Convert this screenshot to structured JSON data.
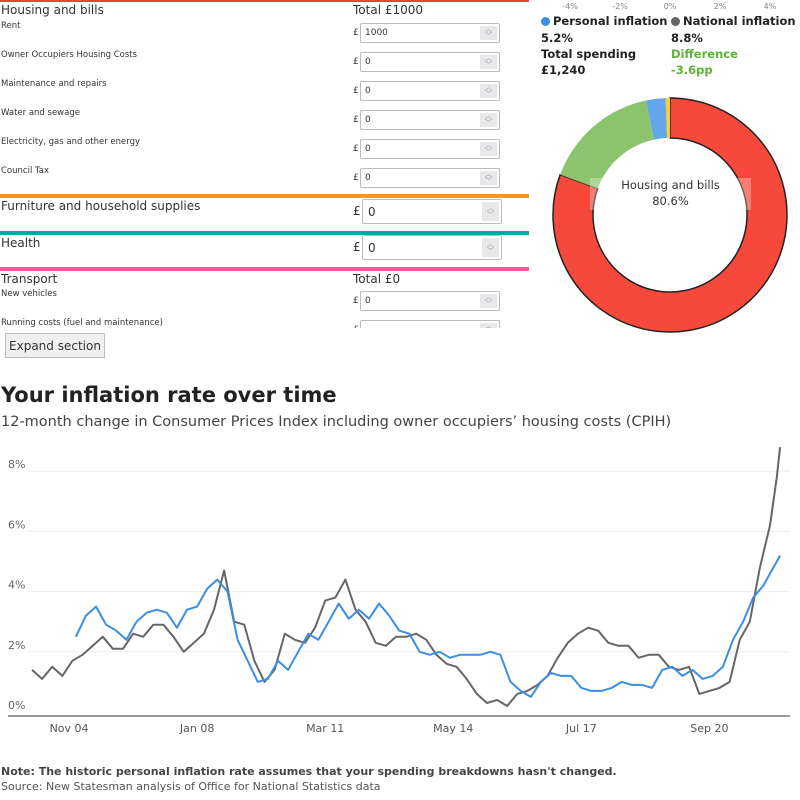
{
  "sections": {
    "housing": {
      "title": "Housing and bills",
      "total": "Total £1000",
      "color": "#f44336",
      "rows": [
        {
          "label": "Rent",
          "value": "1000"
        },
        {
          "label": "Owner Occupiers Housing Costs",
          "value": "0"
        },
        {
          "label": "Maintenance and repairs",
          "value": "0"
        },
        {
          "label": "Water and sewage",
          "value": "0"
        },
        {
          "label": "Electricity, gas and other energy",
          "value": "0"
        },
        {
          "label": "Council Tax",
          "value": "0"
        }
      ]
    },
    "furniture": {
      "title": "Furniture and household supplies",
      "value": "0",
      "color": "#f7941d"
    },
    "health": {
      "title": "Health",
      "value": "0",
      "color": "#0aa4a4"
    },
    "transport": {
      "title": "Transport",
      "total": "Total £0",
      "color": "#f4569a",
      "rows": [
        {
          "label": "New vehicles",
          "value": "0"
        },
        {
          "label": "Running costs (fuel and maintenance)",
          "value": ""
        }
      ]
    },
    "currency": "£",
    "expand_label": "Expand section"
  },
  "summary": {
    "top_ticks": [
      "-4%",
      "-2%",
      "0%",
      "2%",
      "4%"
    ],
    "personal_label": "Personal inflation",
    "personal_value": "5.2%",
    "national_label": "National inflation",
    "national_value": "8.8%",
    "total_label": "Total spending",
    "total_value": "£1,240",
    "difference_label": "Difference",
    "difference_value": "-3.6pp",
    "colors": {
      "personal": "#3a8ee6",
      "national": "#666666",
      "difference": "#5db336"
    }
  },
  "donut": {
    "center_label": "Housing and bills",
    "center_value": "80.6%",
    "segments": [
      {
        "name": "Housing and bills",
        "percent": 80.6,
        "color": "#f6483b"
      },
      {
        "percent": 16.1,
        "color": "#8cc46e"
      },
      {
        "percent": 2.7,
        "color": "#63a6ea"
      },
      {
        "percent": 0.6,
        "color": "#f5d131"
      }
    ]
  },
  "chart": {
    "title": "Your inflation rate over time",
    "subtitle": "12-month change in Consumer Prices Index including owner occupiers’ housing costs (CPIH)",
    "note": "Note: The historic personal inflation rate assumes that your spending breakdowns hasn't changed.",
    "source": "Source: New Statesman analysis of Office for National Statistics data"
  },
  "chart_data": {
    "type": "line",
    "ylim": [
      0,
      8
    ],
    "yticks": [
      "0%",
      "2%",
      "4%",
      "6%",
      "8%"
    ],
    "xticks": [
      {
        "label": "Nov 04",
        "date": "2004-11"
      },
      {
        "label": "Jan 08",
        "date": "2008-01"
      },
      {
        "label": "Mar 11",
        "date": "2011-03"
      },
      {
        "label": "May 14",
        "date": "2014-05"
      },
      {
        "label": "Jul 17",
        "date": "2017-07"
      },
      {
        "label": "Sep 20",
        "date": "2020-09"
      }
    ],
    "xlim": [
      "2003-11",
      "2022-08"
    ],
    "grid": true,
    "series": [
      {
        "name": "National inflation",
        "color": "#666666",
        "points": [
          [
            "2003-12",
            1.4
          ],
          [
            "2004-03",
            1.1
          ],
          [
            "2004-06",
            1.5
          ],
          [
            "2004-09",
            1.2
          ],
          [
            "2004-12",
            1.7
          ],
          [
            "2005-03",
            1.9
          ],
          [
            "2005-06",
            2.2
          ],
          [
            "2005-09",
            2.5
          ],
          [
            "2005-12",
            2.1
          ],
          [
            "2006-03",
            2.1
          ],
          [
            "2006-06",
            2.6
          ],
          [
            "2006-09",
            2.5
          ],
          [
            "2006-12",
            2.9
          ],
          [
            "2007-03",
            2.9
          ],
          [
            "2007-06",
            2.5
          ],
          [
            "2007-09",
            2.0
          ],
          [
            "2007-12",
            2.3
          ],
          [
            "2008-03",
            2.6
          ],
          [
            "2008-06",
            3.4
          ],
          [
            "2008-09",
            4.7
          ],
          [
            "2008-12",
            3.0
          ],
          [
            "2009-03",
            2.9
          ],
          [
            "2009-06",
            1.7
          ],
          [
            "2009-09",
            1.0
          ],
          [
            "2009-12",
            1.4
          ],
          [
            "2010-03",
            2.6
          ],
          [
            "2010-06",
            2.4
          ],
          [
            "2010-09",
            2.3
          ],
          [
            "2010-12",
            2.8
          ],
          [
            "2011-03",
            3.7
          ],
          [
            "2011-06",
            3.8
          ],
          [
            "2011-09",
            4.4
          ],
          [
            "2011-12",
            3.4
          ],
          [
            "2012-03",
            3.0
          ],
          [
            "2012-06",
            2.3
          ],
          [
            "2012-09",
            2.2
          ],
          [
            "2012-12",
            2.5
          ],
          [
            "2013-03",
            2.5
          ],
          [
            "2013-06",
            2.6
          ],
          [
            "2013-09",
            2.4
          ],
          [
            "2013-12",
            1.9
          ],
          [
            "2014-03",
            1.6
          ],
          [
            "2014-06",
            1.5
          ],
          [
            "2014-09",
            1.1
          ],
          [
            "2014-12",
            0.6
          ],
          [
            "2015-03",
            0.3
          ],
          [
            "2015-06",
            0.4
          ],
          [
            "2015-09",
            0.2
          ],
          [
            "2015-12",
            0.6
          ],
          [
            "2016-03",
            0.7
          ],
          [
            "2016-06",
            0.9
          ],
          [
            "2016-09",
            1.2
          ],
          [
            "2016-12",
            1.8
          ],
          [
            "2017-03",
            2.3
          ],
          [
            "2017-06",
            2.6
          ],
          [
            "2017-09",
            2.8
          ],
          [
            "2017-12",
            2.7
          ],
          [
            "2018-03",
            2.3
          ],
          [
            "2018-06",
            2.2
          ],
          [
            "2018-09",
            2.2
          ],
          [
            "2018-12",
            1.8
          ],
          [
            "2019-03",
            1.9
          ],
          [
            "2019-06",
            1.9
          ],
          [
            "2019-09",
            1.5
          ],
          [
            "2019-12",
            1.4
          ],
          [
            "2020-03",
            1.5
          ],
          [
            "2020-06",
            0.6
          ],
          [
            "2020-09",
            0.7
          ],
          [
            "2020-12",
            0.8
          ],
          [
            "2021-03",
            1.0
          ],
          [
            "2021-06",
            2.4
          ],
          [
            "2021-09",
            3.0
          ],
          [
            "2021-12",
            4.8
          ],
          [
            "2022-03",
            6.2
          ],
          [
            "2022-05",
            7.8
          ],
          [
            "2022-06",
            8.8
          ]
        ]
      },
      {
        "name": "Personal inflation",
        "color": "#3a8ee6",
        "points": [
          [
            "2005-01",
            2.5
          ],
          [
            "2005-04",
            3.2
          ],
          [
            "2005-07",
            3.5
          ],
          [
            "2005-10",
            2.9
          ],
          [
            "2006-01",
            2.7
          ],
          [
            "2006-04",
            2.4
          ],
          [
            "2006-07",
            3.0
          ],
          [
            "2006-10",
            3.3
          ],
          [
            "2007-01",
            3.4
          ],
          [
            "2007-04",
            3.3
          ],
          [
            "2007-07",
            2.8
          ],
          [
            "2007-10",
            3.4
          ],
          [
            "2008-01",
            3.5
          ],
          [
            "2008-04",
            4.1
          ],
          [
            "2008-07",
            4.4
          ],
          [
            "2008-10",
            4.0
          ],
          [
            "2009-01",
            2.4
          ],
          [
            "2009-04",
            1.7
          ],
          [
            "2009-07",
            1.0
          ],
          [
            "2009-10",
            1.1
          ],
          [
            "2010-01",
            1.7
          ],
          [
            "2010-04",
            1.4
          ],
          [
            "2010-07",
            2.0
          ],
          [
            "2010-10",
            2.6
          ],
          [
            "2011-01",
            2.4
          ],
          [
            "2011-04",
            3.0
          ],
          [
            "2011-07",
            3.6
          ],
          [
            "2011-10",
            3.1
          ],
          [
            "2012-01",
            3.4
          ],
          [
            "2012-04",
            3.1
          ],
          [
            "2012-07",
            3.6
          ],
          [
            "2012-10",
            3.2
          ],
          [
            "2013-01",
            2.7
          ],
          [
            "2013-04",
            2.6
          ],
          [
            "2013-07",
            2.0
          ],
          [
            "2013-10",
            1.9
          ],
          [
            "2014-01",
            2.0
          ],
          [
            "2014-04",
            1.8
          ],
          [
            "2014-07",
            1.9
          ],
          [
            "2014-10",
            1.9
          ],
          [
            "2015-01",
            1.9
          ],
          [
            "2015-04",
            2.0
          ],
          [
            "2015-07",
            1.9
          ],
          [
            "2015-10",
            1.0
          ],
          [
            "2016-01",
            0.7
          ],
          [
            "2016-04",
            0.5
          ],
          [
            "2016-07",
            1.0
          ],
          [
            "2016-10",
            1.3
          ],
          [
            "2017-01",
            1.2
          ],
          [
            "2017-04",
            1.2
          ],
          [
            "2017-07",
            0.8
          ],
          [
            "2017-10",
            0.7
          ],
          [
            "2018-01",
            0.7
          ],
          [
            "2018-04",
            0.8
          ],
          [
            "2018-07",
            1.0
          ],
          [
            "2018-10",
            0.9
          ],
          [
            "2019-01",
            0.9
          ],
          [
            "2019-04",
            0.8
          ],
          [
            "2019-07",
            1.4
          ],
          [
            "2019-10",
            1.5
          ],
          [
            "2020-01",
            1.2
          ],
          [
            "2020-04",
            1.4
          ],
          [
            "2020-07",
            1.1
          ],
          [
            "2020-10",
            1.2
          ],
          [
            "2021-01",
            1.5
          ],
          [
            "2021-04",
            2.4
          ],
          [
            "2021-07",
            3.0
          ],
          [
            "2021-10",
            3.8
          ],
          [
            "2022-01",
            4.2
          ],
          [
            "2022-06",
            5.2
          ]
        ]
      }
    ]
  }
}
